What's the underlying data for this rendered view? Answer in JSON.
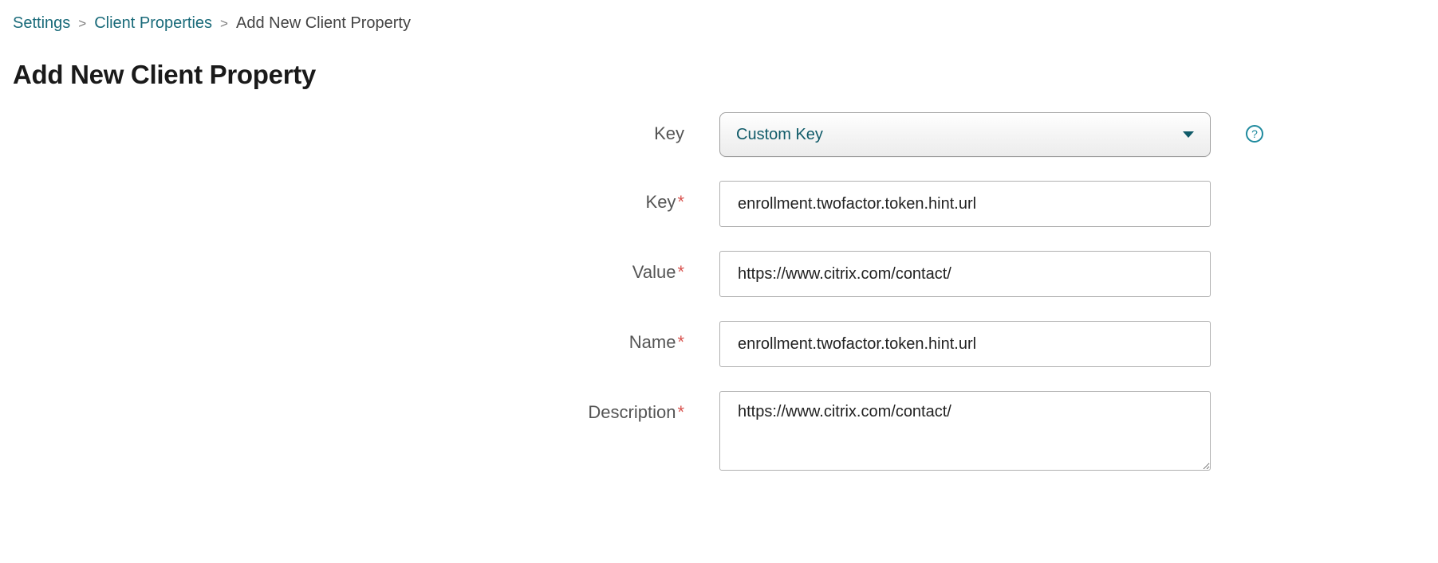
{
  "breadcrumb": {
    "items": [
      {
        "label": "Settings",
        "link": true
      },
      {
        "label": "Client Properties",
        "link": true
      },
      {
        "label": "Add New Client Property",
        "link": false
      }
    ],
    "separator": ">"
  },
  "page": {
    "title": "Add New Client Property"
  },
  "form": {
    "key_select": {
      "label": "Key",
      "required": false,
      "selected": "Custom Key"
    },
    "key_text": {
      "label": "Key",
      "required": true,
      "value": "enrollment.twofactor.token.hint.url"
    },
    "value": {
      "label": "Value",
      "required": true,
      "value": "https://www.citrix.com/contact/"
    },
    "name": {
      "label": "Name",
      "required": true,
      "value": "enrollment.twofactor.token.hint.url"
    },
    "description": {
      "label": "Description",
      "required": true,
      "value": "https://www.citrix.com/contact/"
    }
  },
  "help": {
    "glyph": "?"
  },
  "colors": {
    "link": "#1a6b7a",
    "select_text": "#0f5a68",
    "required_star": "#d9534f",
    "border": "#b0b0b0",
    "help_ring": "#1f8a9e"
  }
}
